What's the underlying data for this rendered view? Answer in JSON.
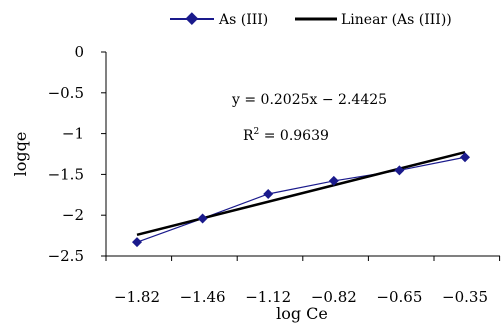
{
  "chart_data": {
    "type": "scatter",
    "title": "",
    "xlabel": "log Ce",
    "ylabel": "logqe",
    "x_categories": [
      "-1.82",
      "-1.46",
      "-1.12",
      "-0.82",
      "-0.65",
      "-0.35"
    ],
    "ylim": [
      -2.5,
      0
    ],
    "yticks": [
      {
        "value": 0,
        "label": "0"
      },
      {
        "value": -0.5,
        "label": "-0.5"
      },
      {
        "value": -1,
        "label": "-1"
      },
      {
        "value": -1.5,
        "label": "-1.5"
      },
      {
        "value": -2,
        "label": "-2"
      },
      {
        "value": -2.5,
        "label": "-2.5"
      }
    ],
    "grid": false,
    "legend_position": "top",
    "series": [
      {
        "name": "As (III)",
        "kind": "line-markers",
        "color": "#1a1a8c",
        "marker": "diamond",
        "values": [
          -2.33,
          -2.04,
          -1.74,
          -1.58,
          -1.45,
          -1.29
        ]
      },
      {
        "name": "Linear (As (III))",
        "kind": "trendline",
        "color": "#000000",
        "slope": 0.2025,
        "intercept": -2.4425,
        "x_index_range": [
          1,
          6
        ]
      }
    ],
    "annotations": {
      "equation": "y = 0.2025x - 2.4425",
      "r2_prefix": "R",
      "r2_sup": "2",
      "r2_value": " = 0.9639"
    }
  }
}
